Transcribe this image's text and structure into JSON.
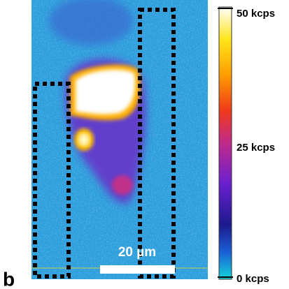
{
  "panel_label": "b",
  "scale_bar": {
    "label": "20 µm"
  },
  "colorbar": {
    "labels": [
      "50 kcps",
      "25 kcps",
      "0 kcps"
    ]
  }
}
